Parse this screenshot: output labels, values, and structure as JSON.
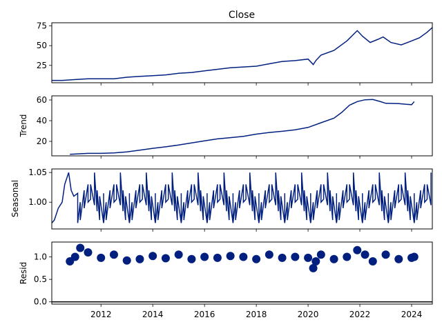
{
  "chart_data": {
    "type": "line",
    "title": "Close",
    "color": "#001f7f",
    "x_range": [
      2010.1,
      2024.8
    ],
    "x_ticks": [
      "2012",
      "2014",
      "2016",
      "2018",
      "2020",
      "2022",
      "2024"
    ],
    "panels": [
      {
        "ylabel": "",
        "ylim": [
          3,
          79
        ],
        "yticks": [
          "25",
          "50",
          "75"
        ],
        "ytick_values": [
          25,
          50,
          75
        ],
        "series": {
          "x": [
            2010.1,
            2010.5,
            2011.0,
            2011.5,
            2012.0,
            2012.5,
            2013.0,
            2013.5,
            2014.0,
            2014.5,
            2015.0,
            2015.5,
            2016.0,
            2016.5,
            2017.0,
            2017.5,
            2018.0,
            2018.5,
            2019.0,
            2019.5,
            2020.0,
            2020.2,
            2020.3,
            2020.5,
            2021.0,
            2021.5,
            2021.9,
            2022.1,
            2022.4,
            2022.7,
            2022.9,
            2023.2,
            2023.6,
            2024.0,
            2024.3,
            2024.6,
            2024.8
          ],
          "y": [
            6,
            6,
            7,
            8,
            8,
            8,
            10,
            11,
            12,
            13,
            15,
            16,
            18,
            20,
            22,
            23,
            24,
            27,
            30,
            31,
            33,
            26,
            31,
            38,
            44,
            56,
            69,
            62,
            54,
            58,
            61,
            54,
            51,
            56,
            60,
            67,
            73
          ]
        }
      },
      {
        "ylabel": "Trend",
        "ylim": [
          6,
          64
        ],
        "yticks": [
          "20",
          "40",
          "60"
        ],
        "ytick_values": [
          20,
          40,
          60
        ],
        "series": {
          "x": [
            2010.8,
            2011.5,
            2012.0,
            2012.5,
            2013.0,
            2013.5,
            2014.0,
            2014.5,
            2015.0,
            2015.5,
            2016.0,
            2016.5,
            2017.0,
            2017.5,
            2018.0,
            2018.5,
            2019.0,
            2019.5,
            2020.0,
            2020.5,
            2021.0,
            2021.3,
            2021.6,
            2021.9,
            2022.2,
            2022.5,
            2022.8,
            2023.0,
            2023.5,
            2023.8,
            2024.0,
            2024.1
          ],
          "y": [
            7.5,
            8.4,
            8.4,
            8.8,
            9.8,
            11.5,
            13.3,
            14.7,
            16.5,
            18.5,
            20.5,
            22.4,
            23.6,
            24.8,
            27,
            28.6,
            29.7,
            31.2,
            33.5,
            38,
            42.5,
            48,
            55,
            58.5,
            60.2,
            60.5,
            58.4,
            56.8,
            56.5,
            55.8,
            55.5,
            58.5
          ]
        }
      },
      {
        "ylabel": "Seasonal",
        "ylim": [
          0.955,
          1.056
        ],
        "yticks": [
          "1.00",
          "1.05"
        ],
        "ytick_values": [
          1.0,
          1.05
        ],
        "series": {
          "x": [
            2010.1,
            2010.2,
            2010.35,
            2010.5,
            2010.6,
            2010.75,
            2010.85,
            2010.95,
            2011.1,
            2011.2,
            2011.35,
            2011.5,
            2011.6,
            2011.75,
            2011.85,
            2011.95,
            2012.1
          ],
          "y": [
            0.965,
            0.97,
            0.99,
            1.0,
            1.03,
            1.05,
            1.02,
            1.01,
            1.015,
            1.0,
            1.02,
            1.03,
            1.005,
            0.995,
            0.985,
            0.97,
            0.965
          ]
        }
      },
      {
        "ylabel": "Resid",
        "ylim": [
          -0.05,
          1.33
        ],
        "yticks": [
          "0.0",
          "0.5",
          "1.0"
        ],
        "ytick_values": [
          0.0,
          0.5,
          1.0
        ],
        "series": {
          "x": [
            2010.8,
            2011.0,
            2011.2,
            2011.5,
            2012.0,
            2012.5,
            2013.0,
            2013.5,
            2014.0,
            2014.5,
            2015.0,
            2015.5,
            2016.0,
            2016.5,
            2017.0,
            2017.5,
            2018.0,
            2018.5,
            2019.0,
            2019.5,
            2020.0,
            2020.2,
            2020.3,
            2020.5,
            2021.0,
            2021.5,
            2021.9,
            2022.2,
            2022.5,
            2023.0,
            2023.5,
            2024.0,
            2024.1
          ],
          "y": [
            0.9,
            1.0,
            1.2,
            1.1,
            0.98,
            1.05,
            0.92,
            0.95,
            1.02,
            0.97,
            1.05,
            0.95,
            1.0,
            0.98,
            1.02,
            1.0,
            0.95,
            1.05,
            0.98,
            1.0,
            0.98,
            0.75,
            0.9,
            1.05,
            0.95,
            1.0,
            1.15,
            1.05,
            0.9,
            1.05,
            0.95,
            0.98,
            1.0
          ]
        }
      }
    ]
  }
}
